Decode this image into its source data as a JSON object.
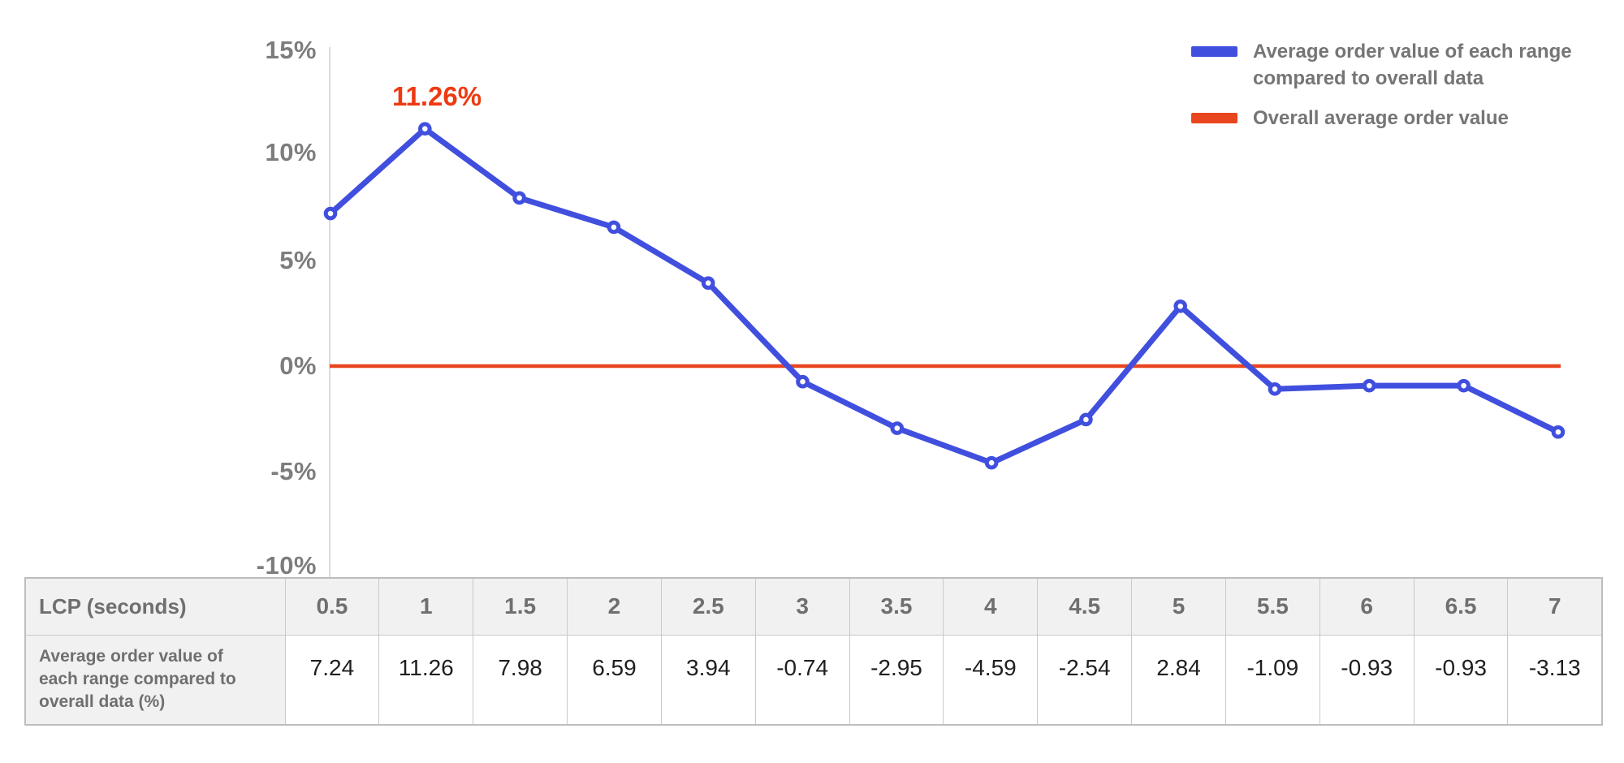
{
  "chart_data": {
    "type": "line",
    "x_label": "LCP (seconds)",
    "categories": [
      "0.5",
      "1",
      "1.5",
      "2",
      "2.5",
      "3",
      "3.5",
      "4",
      "4.5",
      "5",
      "5.5",
      "6",
      "6.5",
      "7"
    ],
    "series": [
      {
        "name": "Average order value of each range compared to overall data",
        "values": [
          7.24,
          11.26,
          7.98,
          6.59,
          3.94,
          -0.74,
          -2.95,
          -4.59,
          -2.54,
          2.84,
          -1.09,
          -0.93,
          -0.93,
          -3.13
        ]
      }
    ],
    "reference_line": {
      "name": "Overall average order value",
      "value": 0
    },
    "ylim": [
      -10,
      15
    ],
    "ytick_labels": [
      "15%",
      "10%",
      "5%",
      "0%",
      "-5%",
      "-10%"
    ],
    "grid": false,
    "legend_position": "top-right",
    "annotation": {
      "text": "11.26%",
      "at_category": "1",
      "at_value": 11.26
    },
    "legend": [
      {
        "label": "Average order value of each range compared to overall data"
      },
      {
        "label": "Overall average order value"
      }
    ],
    "colors": {
      "series_blue": "#414FDE",
      "reference_red": "#E9451F",
      "annotation_red": "#ED3A12",
      "axis_gray": "#DBDBDB",
      "marker_fill": "#FFFFFF"
    }
  },
  "table": {
    "header_label": "LCP (seconds)",
    "row_label": "Average order value of each range compared to overall data (%)",
    "lcp_values": [
      "0.5",
      "1",
      "1.5",
      "2",
      "2.5",
      "3",
      "3.5",
      "4",
      "4.5",
      "5",
      "5.5",
      "6",
      "6.5",
      "7"
    ],
    "aov_values": [
      "7.24",
      "11.26",
      "7.98",
      "6.59",
      "3.94",
      "-0.74",
      "-2.95",
      "-4.59",
      "-2.54",
      "2.84",
      "-1.09",
      "-0.93",
      "-0.93",
      "-3.13"
    ]
  }
}
